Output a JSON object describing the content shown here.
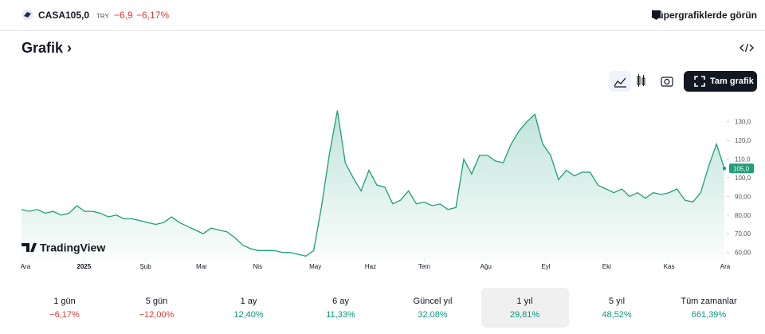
{
  "header": {
    "symbol": "CASA",
    "price": "105,0",
    "currency": "TRY",
    "change": "−6,9",
    "change_percent": "−6,17%",
    "supercharts": "Süpergrafiklerde görün"
  },
  "section_title": "Grafik",
  "full_chart_button": "Tam grafik",
  "watermark": "TradingView",
  "chart_data": {
    "type": "area",
    "color": "#1e9e79",
    "values": [
      83,
      82,
      83,
      81,
      82,
      80,
      81,
      85,
      82,
      82,
      81,
      79,
      80,
      78,
      78,
      77,
      76,
      75,
      76,
      79,
      76,
      74,
      72,
      70,
      73,
      72,
      71,
      68,
      64,
      62,
      61,
      61,
      61,
      60,
      60,
      59,
      58,
      61,
      85,
      113,
      136,
      108,
      100,
      93,
      104,
      96,
      95,
      86,
      88,
      93,
      86,
      87,
      85,
      86,
      83,
      84,
      110,
      102,
      112,
      112,
      109,
      108,
      118,
      125,
      130,
      134,
      118,
      112,
      99,
      104,
      101,
      103,
      103,
      96,
      94,
      92,
      94,
      90,
      92,
      89,
      92,
      91,
      92,
      94,
      88,
      87,
      92,
      106,
      118,
      105
    ],
    "xlim": [
      0,
      89
    ],
    "xticks": [
      {
        "value": 0.5,
        "label": "Ara"
      },
      {
        "value": 7.9,
        "label": "2025"
      },
      {
        "value": 15.7,
        "label": "Şub"
      },
      {
        "value": 22.8,
        "label": "Mar"
      },
      {
        "value": 29.9,
        "label": "Nis"
      },
      {
        "value": 37.2,
        "label": "May"
      },
      {
        "value": 44.2,
        "label": "Haz"
      },
      {
        "value": 51,
        "label": "Tem"
      },
      {
        "value": 58.8,
        "label": "Ağu"
      },
      {
        "value": 66.4,
        "label": "Eyl"
      },
      {
        "value": 74.1,
        "label": "Eki"
      },
      {
        "value": 82,
        "label": "Kas"
      },
      {
        "value": 89.1,
        "label": "Ara"
      }
    ],
    "ylim": [
      56,
      138
    ],
    "yticks": [
      {
        "value": 60,
        "label": "60,00"
      },
      {
        "value": 70,
        "label": "70,00"
      },
      {
        "value": 80,
        "label": "80,00"
      },
      {
        "value": 90,
        "label": "90,00"
      },
      {
        "value": 100,
        "label": "100,0"
      },
      {
        "value": 110,
        "label": "110,0"
      },
      {
        "value": 120,
        "label": "120,0"
      },
      {
        "value": 130,
        "label": "130,0"
      }
    ],
    "last_price_label": {
      "value": 105,
      "label": "105,0"
    }
  },
  "periods": [
    {
      "label": "1 gün",
      "change": "−6,17%"
    },
    {
      "label": "5 gün",
      "change": "−12,00%"
    },
    {
      "label": "1 ay",
      "change": "12,40%"
    },
    {
      "label": "6 ay",
      "change": "11,33%"
    },
    {
      "label": "Güncel yıl",
      "change": "32,08%"
    },
    {
      "label": "1 yıl",
      "change": "29,81%"
    },
    {
      "label": "5 yıl",
      "change": "48,52%"
    },
    {
      "label": "Tüm zamanlar",
      "change": "661,39%"
    }
  ],
  "selected_period": 5
}
